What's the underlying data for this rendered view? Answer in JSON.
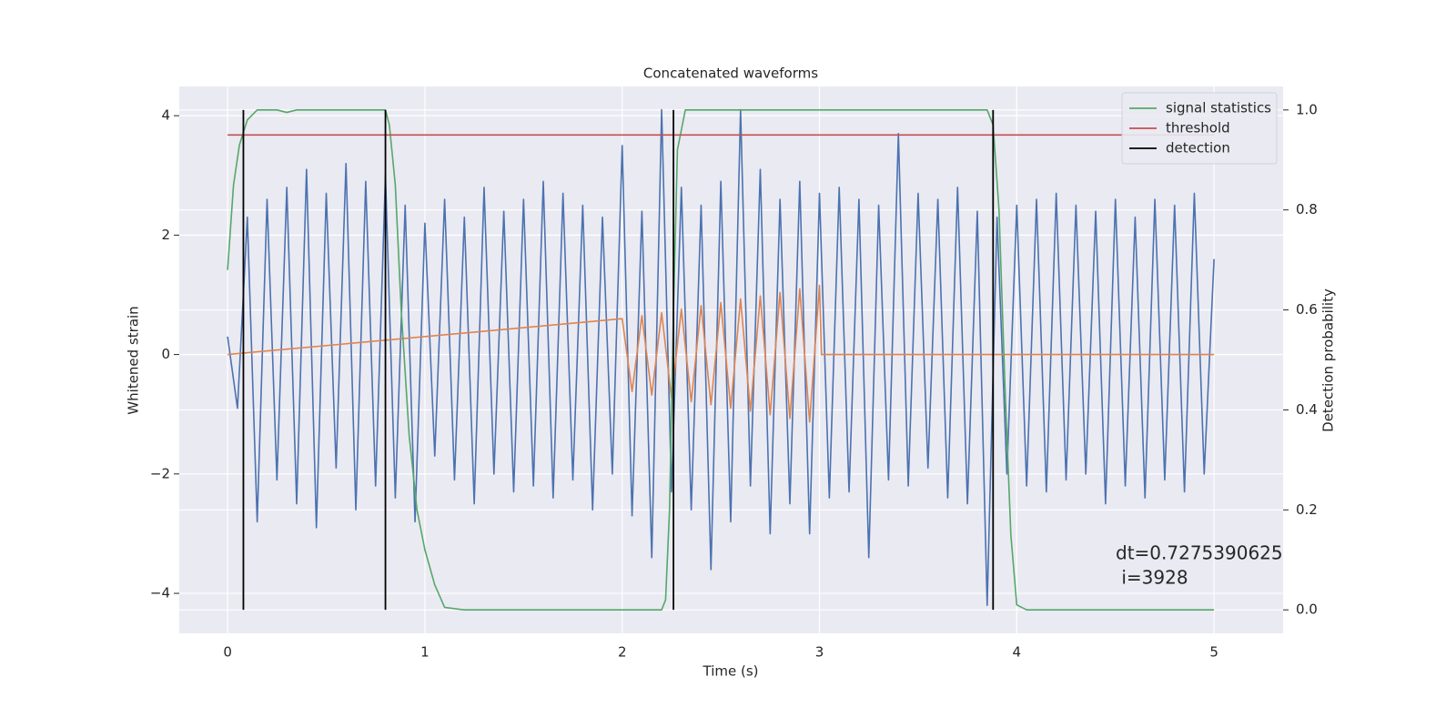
{
  "chart_data": {
    "type": "line",
    "title": "Concatenated waveforms",
    "xlabel": "Time (s)",
    "ylabel": "Whitened strain",
    "y2label": "Detection probability",
    "xlim": [
      -0.245,
      5.35
    ],
    "ylim": [
      -4.67,
      4.49
    ],
    "y2lim": [
      -0.047,
      1.047
    ],
    "xticks": [
      0,
      1,
      2,
      3,
      4,
      5
    ],
    "yticks": [
      {
        "value": -4,
        "label": "−4"
      },
      {
        "value": -2,
        "label": "−2"
      },
      0,
      2,
      4
    ],
    "y2ticks": [
      {
        "value": 0,
        "label": "0.0"
      },
      0.2,
      0.4,
      0.6,
      0.8,
      {
        "value": 1,
        "label": "1.0"
      }
    ],
    "grid": true,
    "legend": "upper right",
    "series": [
      {
        "color": "#4c72b0",
        "x": [
          0,
          0.05,
          0.1,
          0.15,
          0.2,
          0.25,
          0.3,
          0.35,
          0.4,
          0.45,
          0.5,
          0.55,
          0.6,
          0.65,
          0.7,
          0.75,
          0.8,
          0.85,
          0.9,
          0.95,
          1,
          1.05,
          1.1,
          1.15,
          1.2,
          1.25,
          1.3,
          1.35,
          1.4,
          1.45,
          1.5,
          1.55,
          1.6,
          1.65,
          1.7,
          1.75,
          1.8,
          1.85,
          1.9,
          1.95,
          2,
          2.05,
          2.1,
          2.15,
          2.2,
          2.25,
          2.3,
          2.35,
          2.4,
          2.45,
          2.5,
          2.55,
          2.6,
          2.65,
          2.7,
          2.75,
          2.8,
          2.85,
          2.9,
          2.95,
          3,
          3.05,
          3.1,
          3.15,
          3.2,
          3.25,
          3.3,
          3.35,
          3.4,
          3.45,
          3.5,
          3.55,
          3.6,
          3.65,
          3.7,
          3.75,
          3.8,
          3.85,
          3.9,
          3.95,
          4,
          4.05,
          4.1,
          4.15,
          4.2,
          4.25,
          4.3,
          4.35,
          4.4,
          4.45,
          4.5,
          4.55,
          4.6,
          4.65,
          4.7,
          4.75,
          4.8,
          4.85,
          4.9,
          4.95,
          5
        ],
        "values": [
          0.3,
          -0.9,
          2.3,
          -2.8,
          2.6,
          -2.1,
          2.8,
          -2.5,
          3.1,
          -2.9,
          2.7,
          -1.9,
          3.2,
          -2.6,
          2.9,
          -2.2,
          3.0,
          -2.4,
          2.5,
          -2.8,
          2.2,
          -1.7,
          2.6,
          -2.1,
          2.3,
          -2.5,
          2.8,
          -2.0,
          2.4,
          -2.3,
          2.6,
          -2.2,
          2.9,
          -2.4,
          2.7,
          -2.1,
          2.5,
          -2.6,
          2.3,
          -2.0,
          3.5,
          -2.7,
          2.4,
          -3.4,
          4.1,
          -2.3,
          2.8,
          -2.6,
          2.5,
          -3.6,
          2.9,
          -2.8,
          4.1,
          -2.2,
          3.1,
          -3.0,
          2.6,
          -2.5,
          2.9,
          -3.0,
          2.7,
          -2.4,
          2.8,
          -2.3,
          2.6,
          -3.4,
          2.5,
          -2.1,
          3.7,
          -2.2,
          2.7,
          -1.9,
          2.6,
          -2.4,
          2.8,
          -2.5,
          2.4,
          -4.2,
          2.3,
          -2.0,
          2.5,
          -2.2,
          2.6,
          -2.3,
          2.7,
          -2.1,
          2.5,
          -2.0,
          2.4,
          -2.5,
          2.6,
          -2.2,
          2.3,
          -2.4,
          2.6,
          -2.1,
          2.5,
          -2.3,
          2.7,
          -2.0,
          1.6
        ]
      },
      {
        "color": "#dd8452",
        "x": [
          0,
          2.0,
          2.05,
          2.1,
          2.15,
          2.2,
          2.25,
          2.3,
          2.35,
          2.4,
          2.45,
          2.5,
          2.55,
          2.6,
          2.65,
          2.7,
          2.75,
          2.8,
          2.85,
          2.9,
          2.95,
          3.0,
          3.01,
          5
        ],
        "values": [
          0,
          0.6,
          -0.62,
          0.65,
          -0.68,
          0.7,
          -0.73,
          0.76,
          -0.79,
          0.82,
          -0.84,
          0.87,
          -0.9,
          0.93,
          -0.95,
          0.98,
          -1.01,
          1.04,
          -1.07,
          1.1,
          -1.13,
          1.16,
          0,
          0
        ]
      },
      {
        "name": "signal statistics",
        "color": "#55a868",
        "axis": "y2",
        "x": [
          0,
          0.03,
          0.06,
          0.1,
          0.15,
          0.25,
          0.3,
          0.35,
          0.8,
          0.82,
          0.85,
          0.88,
          0.92,
          0.96,
          1.0,
          1.05,
          1.1,
          1.2,
          2.2,
          2.22,
          2.24,
          2.26,
          2.28,
          2.32,
          3.85,
          3.88,
          3.91,
          3.94,
          3.97,
          4.0,
          4.05,
          5.0
        ],
        "values": [
          0.68,
          0.85,
          0.93,
          0.98,
          1.0,
          1.0,
          0.995,
          1.0,
          1.0,
          0.97,
          0.85,
          0.6,
          0.35,
          0.2,
          0.12,
          0.05,
          0.005,
          0,
          0,
          0.02,
          0.2,
          0.6,
          0.92,
          1.0,
          1.0,
          0.97,
          0.8,
          0.45,
          0.15,
          0.01,
          0,
          0
        ]
      },
      {
        "name": "threshold",
        "color": "#c44e52",
        "axis": "y2",
        "x": [
          0,
          5
        ],
        "values": [
          0.95,
          0.95
        ]
      }
    ],
    "detections": {
      "name": "detection",
      "color": "#000000",
      "x": [
        0.08,
        0.8,
        2.26,
        3.88
      ],
      "y2range": [
        0,
        1
      ]
    },
    "annotation": [
      "dt=0.7275390625",
      " i=3928"
    ]
  }
}
